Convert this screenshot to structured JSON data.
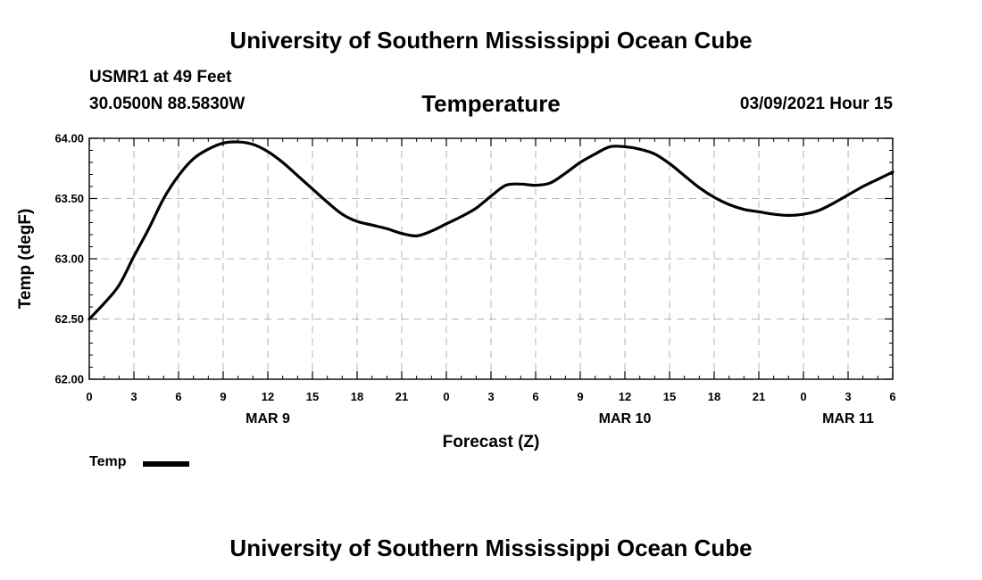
{
  "header": {
    "top_title": "University of Southern Mississippi Ocean Cube",
    "station": "USMR1 at 49 Feet",
    "coords": "30.0500N 88.5830W",
    "chart_title": "Temperature",
    "issue_time": "03/09/2021 Hour 15"
  },
  "footer": {
    "bottom_title": "University of Southern Mississippi Ocean Cube"
  },
  "legend": {
    "label": "Temp"
  },
  "chart_data": {
    "type": "line",
    "title": "Temperature",
    "xlabel": "Forecast (Z)",
    "ylabel": "Temp (degF)",
    "ylim": [
      62.0,
      64.0
    ],
    "y_ticks": [
      "62.00",
      "62.50",
      "63.00",
      "63.50",
      "64.00"
    ],
    "x_range_hours": [
      0,
      54
    ],
    "x_tick_labels": [
      "0",
      "3",
      "6",
      "9",
      "12",
      "15",
      "18",
      "21",
      "0",
      "3",
      "6",
      "9",
      "12",
      "15",
      "18",
      "21",
      "0",
      "3",
      "6"
    ],
    "date_labels": [
      {
        "label": "MAR 9",
        "hour": 12
      },
      {
        "label": "MAR 10",
        "hour": 36
      },
      {
        "label": "MAR 11",
        "hour": 51
      }
    ],
    "grid": true,
    "series": [
      {
        "name": "Temp",
        "color": "#000000",
        "x": [
          0,
          1,
          2,
          3,
          4,
          5,
          6,
          7,
          8,
          9,
          10,
          11,
          12,
          13,
          14,
          15,
          16,
          17,
          18,
          19,
          20,
          21,
          22,
          23,
          24,
          25,
          26,
          27,
          28,
          29,
          30,
          31,
          32,
          33,
          34,
          35,
          36,
          37,
          38,
          39,
          40,
          41,
          42,
          43,
          44,
          45,
          46,
          47,
          48,
          49,
          50,
          51,
          52,
          53,
          54
        ],
        "values": [
          62.5,
          62.63,
          62.78,
          63.02,
          63.25,
          63.5,
          63.69,
          63.83,
          63.91,
          63.96,
          63.97,
          63.95,
          63.89,
          63.8,
          63.69,
          63.58,
          63.47,
          63.37,
          63.31,
          63.28,
          63.25,
          63.21,
          63.19,
          63.23,
          63.29,
          63.35,
          63.42,
          63.52,
          63.61,
          63.62,
          63.61,
          63.63,
          63.71,
          63.8,
          63.87,
          63.93,
          63.93,
          63.91,
          63.87,
          63.79,
          63.69,
          63.59,
          63.51,
          63.45,
          63.41,
          63.39,
          63.37,
          63.36,
          63.37,
          63.4,
          63.46,
          63.53,
          63.6,
          63.66,
          63.72
        ]
      }
    ]
  }
}
